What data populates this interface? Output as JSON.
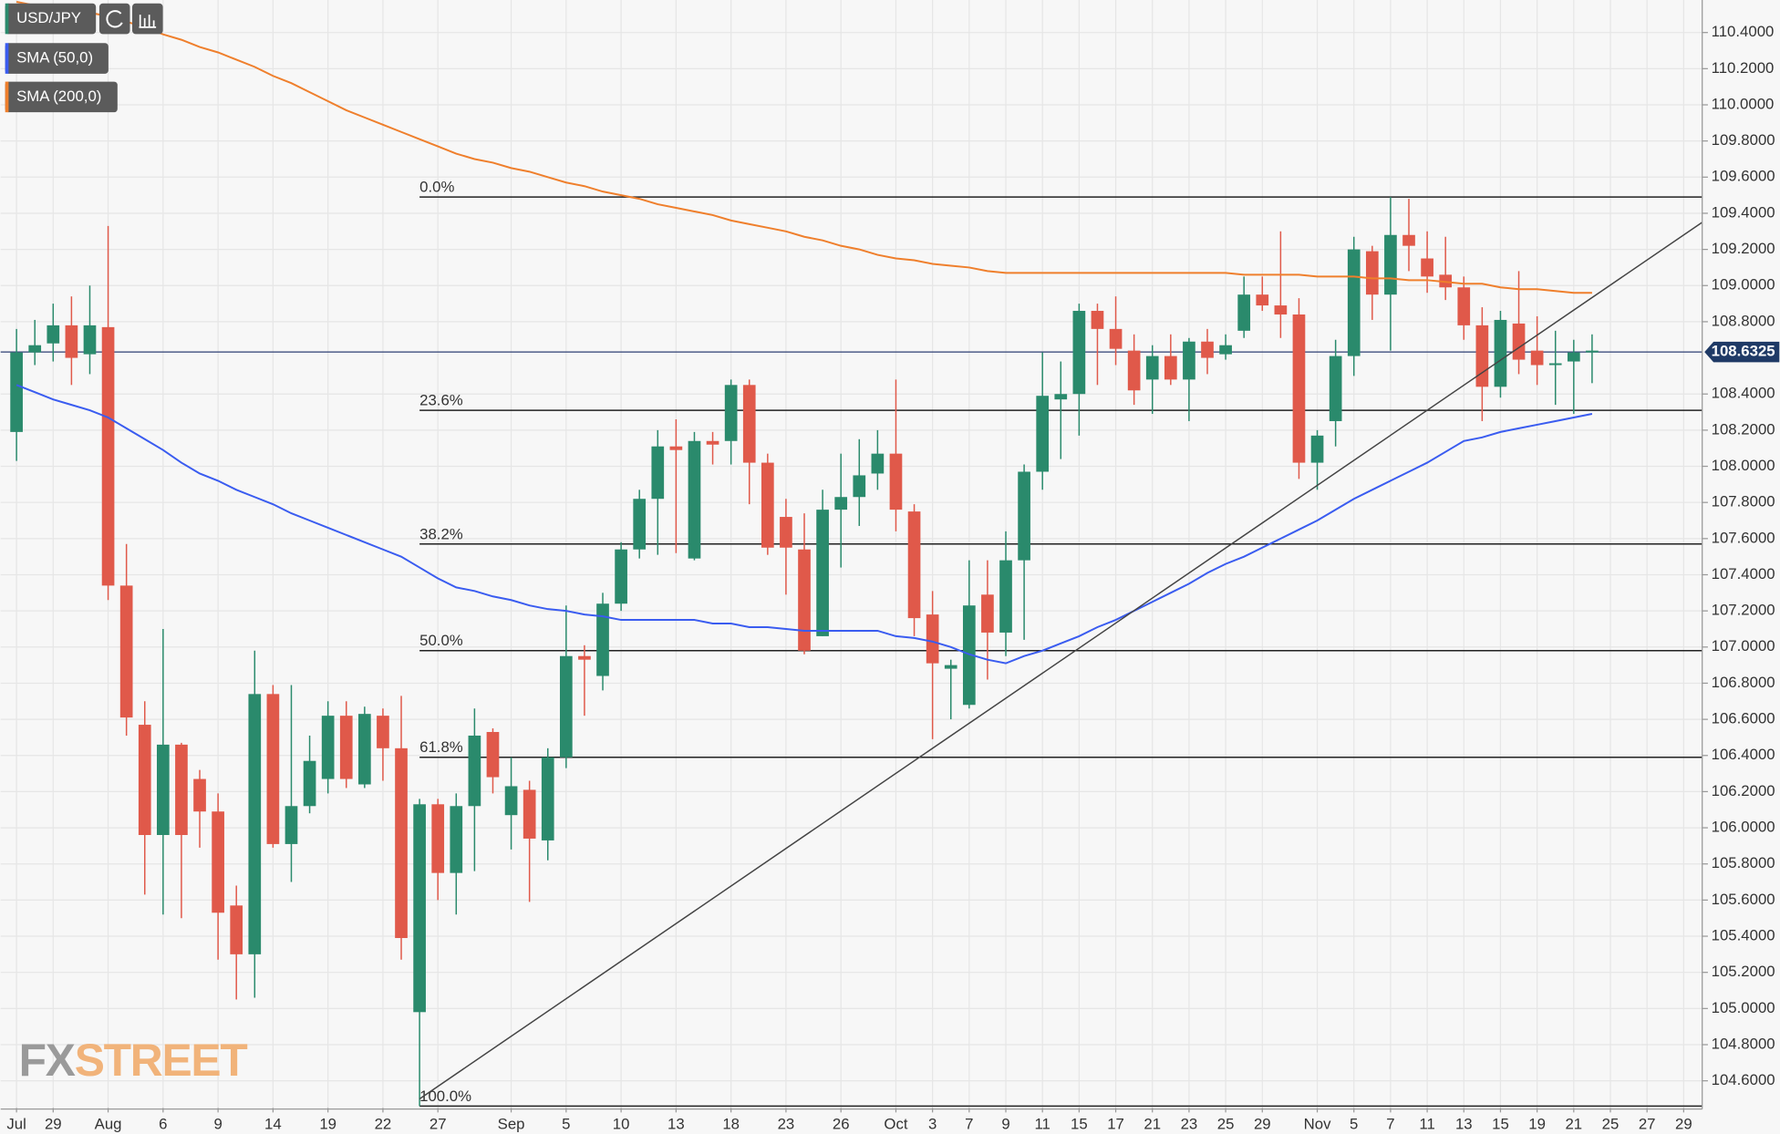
{
  "chart_data": {
    "type": "candlestick",
    "categories": [
      "Jul",
      null,
      "29",
      null,
      null,
      "Aug",
      null,
      null,
      "6",
      null,
      null,
      "9",
      null,
      null,
      "14",
      null,
      null,
      "19",
      null,
      null,
      "22",
      null,
      null,
      "27",
      null,
      null,
      null,
      "Sep",
      null,
      null,
      "5",
      null,
      null,
      "10",
      null,
      null,
      "13",
      null,
      null,
      "18",
      null,
      null,
      "23",
      null,
      null,
      "26",
      null,
      null,
      "Oct",
      null,
      "3",
      null,
      "7",
      null,
      "9",
      null,
      "11",
      null,
      "15",
      null,
      "17",
      null,
      "21",
      null,
      "23",
      null,
      "25",
      null,
      "29",
      null,
      null,
      "Nov",
      null,
      "5",
      null,
      "7",
      null,
      "11",
      null,
      "13",
      null,
      "15",
      null,
      "19",
      null,
      "21",
      null,
      "25",
      null,
      "27",
      null,
      "29"
    ],
    "series": [
      {
        "name": "USD/JPY",
        "color": "#2a8a6c",
        "up_color": "#2a8a6c",
        "down_color": "#e0594a",
        "open": [
          108.19,
          108.63,
          108.68,
          108.78,
          108.62,
          108.77,
          107.34,
          106.57,
          105.96,
          106.46,
          106.27,
          106.09,
          105.57,
          105.3,
          106.74,
          105.91,
          106.12,
          106.27,
          106.62,
          106.24,
          106.62,
          106.44,
          104.98,
          106.13,
          105.75,
          106.12,
          106.53,
          106.07,
          106.21,
          105.93,
          106.39,
          106.95,
          106.84,
          107.24,
          107.54,
          107.82,
          108.11,
          107.49,
          108.14,
          108.14,
          108.45,
          108.02,
          107.72,
          107.54,
          107.06,
          107.76,
          107.83,
          107.96,
          108.07,
          107.75,
          107.18,
          106.88,
          106.68,
          107.29,
          107.08,
          107.48,
          107.97,
          108.37,
          108.4,
          108.86,
          108.76,
          108.64,
          108.48,
          108.61,
          108.48,
          108.69,
          108.62,
          108.75,
          108.95,
          108.89,
          108.84,
          108.02,
          108.25,
          108.61,
          109.19,
          108.95,
          109.28,
          109.15,
          109.06,
          108.99,
          108.78,
          108.44,
          108.79,
          108.64,
          108.56,
          108.58,
          108.63,
          null,
          null,
          null,
          null,
          null
        ],
        "high": [
          108.76,
          108.81,
          108.9,
          108.94,
          109.0,
          109.33,
          107.57,
          106.7,
          107.1,
          106.47,
          106.32,
          106.19,
          105.68,
          106.98,
          106.79,
          106.79,
          106.51,
          106.7,
          106.7,
          106.67,
          106.66,
          106.73,
          106.16,
          106.16,
          106.19,
          106.66,
          106.55,
          106.39,
          106.26,
          106.44,
          107.23,
          107.01,
          107.3,
          107.58,
          107.87,
          108.2,
          108.26,
          108.19,
          108.19,
          108.48,
          108.48,
          108.07,
          107.82,
          107.74,
          107.87,
          108.07,
          108.15,
          108.2,
          108.48,
          107.79,
          107.31,
          106.93,
          107.48,
          107.48,
          107.64,
          108.01,
          108.63,
          108.58,
          108.9,
          108.9,
          108.94,
          108.73,
          108.67,
          108.73,
          108.71,
          108.76,
          108.73,
          109.05,
          109.05,
          109.3,
          108.93,
          108.2,
          108.7,
          109.27,
          109.22,
          109.49,
          109.48,
          109.3,
          109.27,
          109.05,
          108.88,
          108.86,
          109.08,
          108.83,
          108.75,
          108.7,
          108.73,
          null,
          null,
          null,
          null,
          null
        ],
        "low": [
          108.03,
          108.56,
          108.58,
          108.45,
          108.51,
          107.26,
          106.51,
          105.63,
          105.52,
          105.5,
          105.89,
          105.27,
          105.05,
          105.06,
          105.89,
          105.7,
          106.08,
          106.19,
          106.22,
          106.22,
          106.26,
          105.27,
          104.46,
          105.6,
          105.52,
          105.76,
          106.19,
          105.88,
          105.59,
          105.82,
          106.33,
          106.62,
          106.76,
          107.2,
          107.49,
          107.51,
          107.52,
          107.48,
          108.01,
          108.01,
          107.79,
          107.51,
          107.29,
          106.96,
          107.06,
          107.44,
          107.67,
          107.87,
          107.64,
          107.06,
          106.49,
          106.6,
          106.66,
          106.82,
          106.95,
          107.04,
          107.87,
          108.04,
          108.17,
          108.45,
          108.56,
          108.34,
          108.29,
          108.45,
          108.25,
          108.51,
          108.59,
          108.71,
          108.86,
          108.71,
          107.93,
          107.87,
          108.11,
          108.5,
          108.81,
          108.64,
          109.08,
          108.96,
          108.92,
          108.7,
          108.25,
          108.38,
          108.51,
          108.45,
          108.34,
          108.29,
          108.46,
          null,
          null,
          null,
          null,
          null
        ],
        "close": [
          108.63,
          108.67,
          108.78,
          108.6,
          108.78,
          107.34,
          106.61,
          105.96,
          106.46,
          105.96,
          106.09,
          105.53,
          105.3,
          106.74,
          105.91,
          106.12,
          106.37,
          106.62,
          106.27,
          106.63,
          106.44,
          105.39,
          106.13,
          105.75,
          106.12,
          106.51,
          106.28,
          106.23,
          105.94,
          106.39,
          106.95,
          106.93,
          107.24,
          107.54,
          107.82,
          108.11,
          108.09,
          108.14,
          108.12,
          108.45,
          108.02,
          107.55,
          107.55,
          106.98,
          107.76,
          107.83,
          107.95,
          108.07,
          107.76,
          107.16,
          106.91,
          106.9,
          107.23,
          107.08,
          107.48,
          107.97,
          108.39,
          108.4,
          108.86,
          108.76,
          108.65,
          108.42,
          108.61,
          108.48,
          108.69,
          108.6,
          108.67,
          108.95,
          108.89,
          108.84,
          108.02,
          108.17,
          108.61,
          109.2,
          108.95,
          109.28,
          109.22,
          109.05,
          108.99,
          108.78,
          108.44,
          108.81,
          108.59,
          108.56,
          108.57,
          108.63,
          108.64,
          null,
          null,
          null,
          null,
          null
        ]
      },
      {
        "name": "SMA (50,0)",
        "color": "#3a5cf0",
        "values": [
          108.45,
          108.41,
          108.37,
          108.34,
          108.31,
          108.27,
          108.21,
          108.15,
          108.09,
          108.02,
          107.96,
          107.92,
          107.87,
          107.83,
          107.79,
          107.74,
          107.7,
          107.66,
          107.62,
          107.58,
          107.54,
          107.5,
          107.44,
          107.38,
          107.33,
          107.31,
          107.28,
          107.26,
          107.23,
          107.21,
          107.2,
          107.18,
          107.17,
          107.15,
          107.15,
          107.15,
          107.15,
          107.15,
          107.13,
          107.13,
          107.11,
          107.11,
          107.1,
          107.09,
          107.09,
          107.09,
          107.09,
          107.09,
          107.06,
          107.05,
          107.03,
          107.0,
          106.96,
          106.93,
          106.91,
          106.95,
          106.98,
          107.02,
          107.06,
          107.11,
          107.15,
          107.2,
          107.25,
          107.3,
          107.35,
          107.41,
          107.46,
          107.5,
          107.55,
          107.6,
          107.65,
          107.7,
          107.76,
          107.82,
          107.87,
          107.92,
          107.97,
          108.02,
          108.08,
          108.14,
          108.16,
          108.19,
          108.21,
          108.23,
          108.25,
          108.27,
          108.29,
          null,
          null,
          null,
          null,
          null
        ]
      },
      {
        "name": "SMA (200,0)",
        "color": "#ef7f2c",
        "values": [
          110.57,
          110.55,
          110.54,
          110.52,
          110.51,
          110.49,
          110.46,
          110.43,
          110.39,
          110.36,
          110.32,
          110.29,
          110.25,
          110.21,
          110.16,
          110.12,
          110.07,
          110.02,
          109.97,
          109.93,
          109.89,
          109.85,
          109.81,
          109.77,
          109.73,
          109.7,
          109.68,
          109.65,
          109.63,
          109.6,
          109.57,
          109.55,
          109.52,
          109.5,
          109.48,
          109.45,
          109.43,
          109.41,
          109.39,
          109.36,
          109.34,
          109.32,
          109.3,
          109.27,
          109.25,
          109.22,
          109.2,
          109.17,
          109.15,
          109.14,
          109.12,
          109.11,
          109.1,
          109.08,
          109.07,
          109.07,
          109.07,
          109.07,
          109.07,
          109.07,
          109.07,
          109.07,
          109.07,
          109.07,
          109.07,
          109.07,
          109.07,
          109.06,
          109.06,
          109.06,
          109.06,
          109.05,
          109.05,
          109.05,
          109.04,
          109.04,
          109.03,
          109.03,
          109.02,
          109.01,
          109.01,
          108.99,
          108.98,
          108.98,
          108.97,
          108.96,
          108.96,
          null,
          null,
          null,
          null,
          null
        ]
      }
    ],
    "fib_levels": [
      {
        "label": "0.0%",
        "value": 109.49
      },
      {
        "label": "23.6%",
        "value": 108.31
      },
      {
        "label": "38.2%",
        "value": 107.57
      },
      {
        "label": "50.0%",
        "value": 106.98
      },
      {
        "label": "61.8%",
        "value": 106.39
      },
      {
        "label": "100.0%",
        "value": 104.46
      }
    ],
    "trendline": [
      104.5,
      109.35
    ],
    "last_price": 108.6325,
    "ylim": [
      104.45,
      110.58
    ],
    "yticks": [
      {
        "value": 110.4,
        "label": "110.4000"
      },
      {
        "value": 110.2,
        "label": "110.2000"
      },
      {
        "value": 110.0,
        "label": "110.0000"
      },
      {
        "value": 109.8,
        "label": "109.8000"
      },
      {
        "value": 109.6,
        "label": "109.6000"
      },
      {
        "value": 109.4,
        "label": "109.4000"
      },
      {
        "value": 109.2,
        "label": "109.2000"
      },
      {
        "value": 109.0,
        "label": "109.0000"
      },
      {
        "value": 108.8,
        "label": "108.8000"
      },
      {
        "value": 108.4,
        "label": "108.4000"
      },
      {
        "value": 108.2,
        "label": "108.2000"
      },
      {
        "value": 108.0,
        "label": "108.0000"
      },
      {
        "value": 107.8,
        "label": "107.8000"
      },
      {
        "value": 107.6,
        "label": "107.6000"
      },
      {
        "value": 107.4,
        "label": "107.4000"
      },
      {
        "value": 107.2,
        "label": "107.2000"
      },
      {
        "value": 107.0,
        "label": "107.0000"
      },
      {
        "value": 106.8,
        "label": "106.8000"
      },
      {
        "value": 106.6,
        "label": "106.6000"
      },
      {
        "value": 106.4,
        "label": "106.4000"
      },
      {
        "value": 106.2,
        "label": "106.2000"
      },
      {
        "value": 106.0,
        "label": "106.0000"
      },
      {
        "value": 105.8,
        "label": "105.8000"
      },
      {
        "value": 105.6,
        "label": "105.6000"
      },
      {
        "value": 105.4,
        "label": "105.4000"
      },
      {
        "value": 105.2,
        "label": "105.2000"
      },
      {
        "value": 105.0,
        "label": "105.0000"
      },
      {
        "value": 104.8,
        "label": "104.8000"
      },
      {
        "value": 104.6,
        "label": "104.6000"
      }
    ],
    "grid": true,
    "watermark": {
      "prefix": "FX",
      "suffix": "STREET"
    }
  }
}
